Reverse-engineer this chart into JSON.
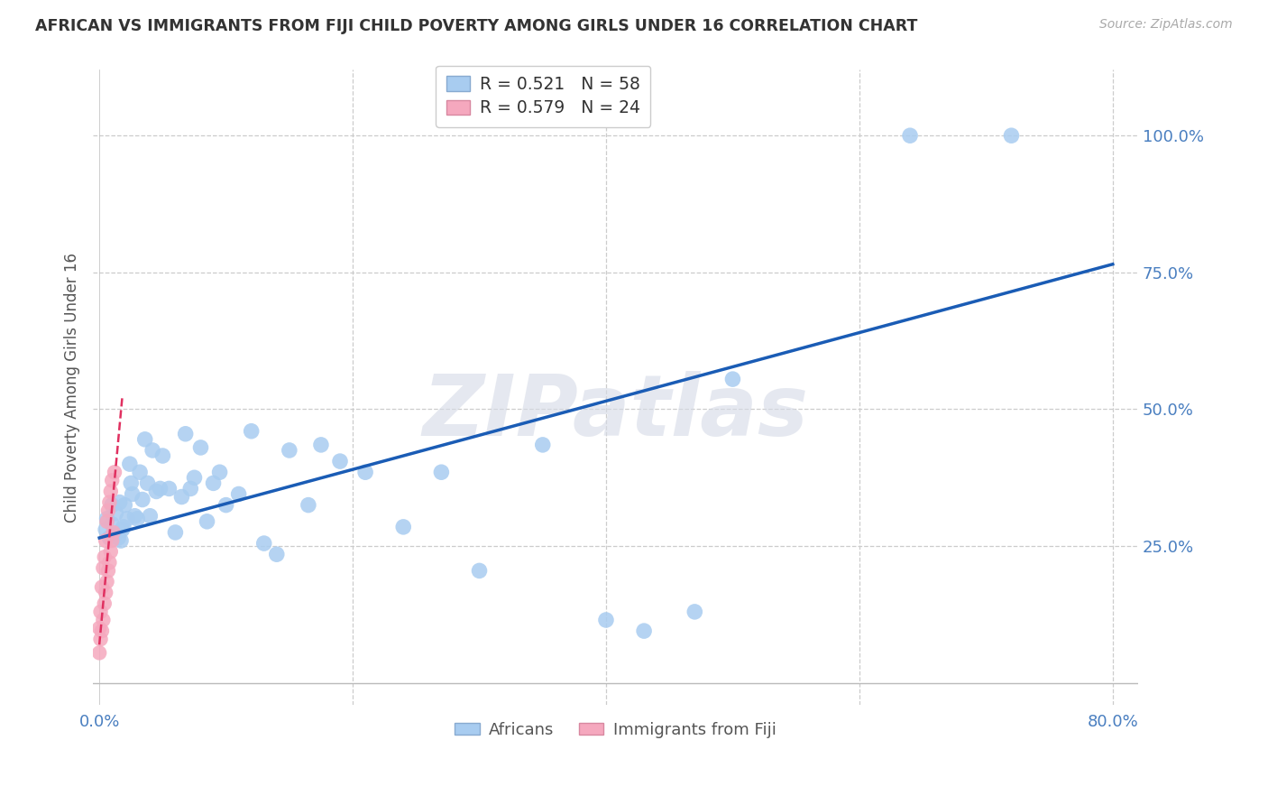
{
  "title": "AFRICAN VS IMMIGRANTS FROM FIJI CHILD POVERTY AMONG GIRLS UNDER 16 CORRELATION CHART",
  "source": "Source: ZipAtlas.com",
  "ylabel": "Child Poverty Among Girls Under 16",
  "xlim": [
    -0.005,
    0.82
  ],
  "ylim": [
    -0.04,
    1.12
  ],
  "african_color": "#a8ccf0",
  "african_line_color": "#1a5cb5",
  "fiji_color": "#f5a8be",
  "fiji_line_color": "#e03060",
  "watermark": "ZIPatlas",
  "legend_r_african": "R = 0.521",
  "legend_n_african": "N = 58",
  "legend_r_fiji": "R = 0.579",
  "legend_n_fiji": "N = 24",
  "tick_color": "#4a7fc0",
  "africans_x": [
    0.005,
    0.006,
    0.008,
    0.01,
    0.01,
    0.012,
    0.013,
    0.015,
    0.016,
    0.017,
    0.018,
    0.019,
    0.02,
    0.022,
    0.024,
    0.025,
    0.026,
    0.028,
    0.03,
    0.032,
    0.034,
    0.036,
    0.038,
    0.04,
    0.042,
    0.045,
    0.048,
    0.05,
    0.055,
    0.06,
    0.065,
    0.068,
    0.072,
    0.075,
    0.08,
    0.085,
    0.09,
    0.095,
    0.1,
    0.11,
    0.12,
    0.13,
    0.14,
    0.15,
    0.165,
    0.175,
    0.19,
    0.21,
    0.24,
    0.27,
    0.3,
    0.35,
    0.4,
    0.43,
    0.47,
    0.5,
    0.64,
    0.72
  ],
  "africans_y": [
    0.28,
    0.3,
    0.265,
    0.29,
    0.325,
    0.27,
    0.31,
    0.265,
    0.33,
    0.26,
    0.28,
    0.285,
    0.325,
    0.3,
    0.4,
    0.365,
    0.345,
    0.305,
    0.3,
    0.385,
    0.335,
    0.445,
    0.365,
    0.305,
    0.425,
    0.35,
    0.355,
    0.415,
    0.355,
    0.275,
    0.34,
    0.455,
    0.355,
    0.375,
    0.43,
    0.295,
    0.365,
    0.385,
    0.325,
    0.345,
    0.46,
    0.255,
    0.235,
    0.425,
    0.325,
    0.435,
    0.405,
    0.385,
    0.285,
    0.385,
    0.205,
    0.435,
    0.115,
    0.095,
    0.13,
    0.555,
    1.0,
    1.0
  ],
  "fiji_x": [
    0.0,
    0.0,
    0.001,
    0.001,
    0.002,
    0.002,
    0.003,
    0.003,
    0.004,
    0.004,
    0.005,
    0.005,
    0.006,
    0.006,
    0.007,
    0.007,
    0.008,
    0.008,
    0.009,
    0.009,
    0.01,
    0.01,
    0.011,
    0.012
  ],
  "fiji_y": [
    0.055,
    0.1,
    0.08,
    0.13,
    0.095,
    0.175,
    0.115,
    0.21,
    0.145,
    0.23,
    0.165,
    0.26,
    0.185,
    0.295,
    0.205,
    0.315,
    0.22,
    0.33,
    0.24,
    0.35,
    0.26,
    0.37,
    0.275,
    0.385
  ]
}
